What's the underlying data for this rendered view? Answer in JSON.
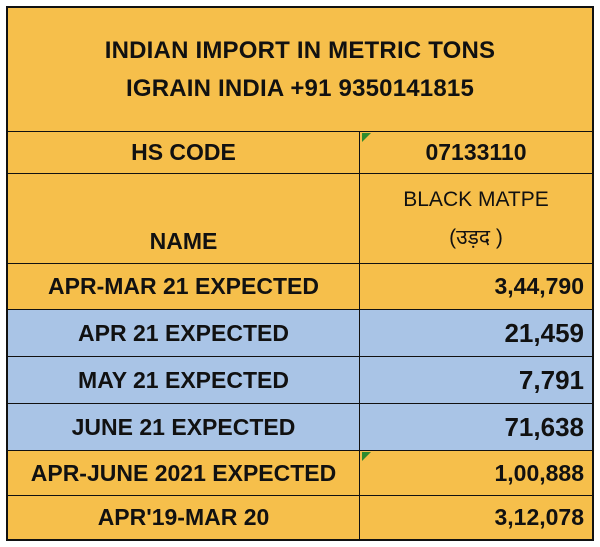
{
  "header": {
    "title_line1": "INDIAN IMPORT IN METRIC TONS",
    "title_line2": "IGRAIN INDIA +91 9350141815"
  },
  "hs_code": {
    "label": "HS CODE",
    "value": "07133110"
  },
  "name": {
    "label": "NAME",
    "value_line1": "BLACK MATPE",
    "value_line2": "(उड़द )"
  },
  "rows": [
    {
      "label": "APR-MAR 21 EXPECTED",
      "value": "3,44,790"
    },
    {
      "label": "APR 21 EXPECTED",
      "value": "21,459"
    },
    {
      "label": "MAY 21 EXPECTED",
      "value": "7,791"
    },
    {
      "label": "JUNE 21 EXPECTED",
      "value": "71,638"
    },
    {
      "label": "APR-JUNE 2021 EXPECTED",
      "value": "1,00,888"
    },
    {
      "label": "APR'19-MAR 20",
      "value": "3,12,078"
    }
  ],
  "colors": {
    "gold": "#F6BF4B",
    "blue": "#A9C4E6",
    "comment_marker": "#2E8B2E"
  }
}
